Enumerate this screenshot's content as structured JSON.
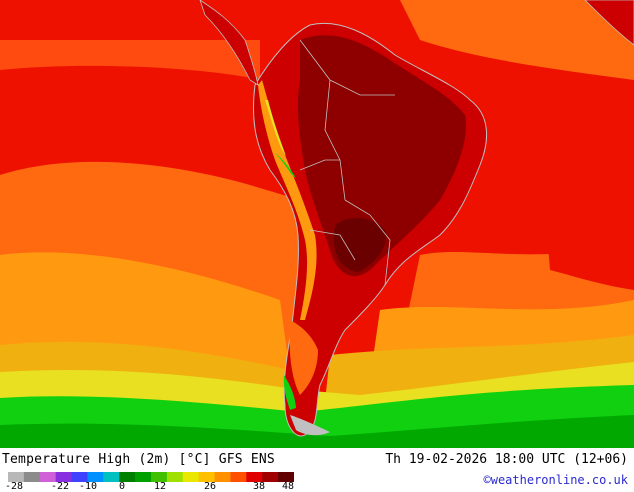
{
  "map": {
    "region": "South America",
    "variable": "Temperature High (2m)"
  },
  "footer": {
    "title": "Temperature High (2m) [°C] GFS ENS",
    "datetime": "Th 19-02-2026 18:00 UTC (12+06)",
    "credit": "©weatheronline.co.uk"
  },
  "legend": {
    "ticks": [
      "-28",
      "-22",
      "-10",
      "0",
      "12",
      "26",
      "38",
      "48"
    ],
    "colors": [
      "#b8b8b8",
      "#8c8c8c",
      "#d060d8",
      "#8830e0",
      "#4040ff",
      "#0090ff",
      "#00c0c0",
      "#008000",
      "#00a000",
      "#40c000",
      "#a0e000",
      "#e8e800",
      "#ffc000",
      "#ff9000",
      "#ff5000",
      "#e00000",
      "#a00000",
      "#600000"
    ]
  },
  "palette": {
    "cold_green": "#10d010",
    "yellow": "#e8e020",
    "orange": "#ff9a10",
    "orange_red": "#ff6a10",
    "red": "#ee1100",
    "dark_red": "#8e0000",
    "land_line": "#c0c0c0"
  }
}
